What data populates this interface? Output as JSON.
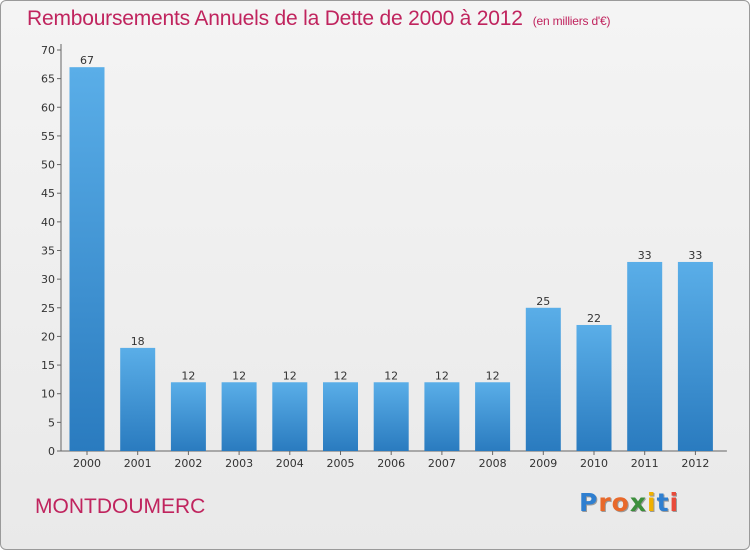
{
  "title": "Remboursements Annuels de la Dette de 2000 à 2012",
  "unit_note": "(en milliers d'€)",
  "commune": "MONTDOUMERC",
  "logo": {
    "text": "Proxiti",
    "letter_colors": [
      "#2f7fd0",
      "#e8692b",
      "#e8692b",
      "#3c8f3c",
      "#f0b000",
      "#2f7fd0",
      "#e84a3a"
    ]
  },
  "colors": {
    "accent": "#c0245e",
    "bar_top": "#5aaee8",
    "bar_bottom": "#2a7bbf"
  },
  "chart_data": {
    "type": "bar",
    "categories": [
      "2000",
      "2001",
      "2002",
      "2003",
      "2004",
      "2005",
      "2006",
      "2007",
      "2008",
      "2009",
      "2010",
      "2011",
      "2012"
    ],
    "values": [
      67,
      18,
      12,
      12,
      12,
      12,
      12,
      12,
      12,
      25,
      22,
      33,
      33
    ],
    "ylim": [
      0,
      70
    ],
    "yticks": [
      0,
      5,
      10,
      15,
      20,
      25,
      30,
      35,
      40,
      45,
      50,
      55,
      60,
      65,
      70
    ],
    "grid": false,
    "xlabel": "",
    "ylabel": ""
  }
}
